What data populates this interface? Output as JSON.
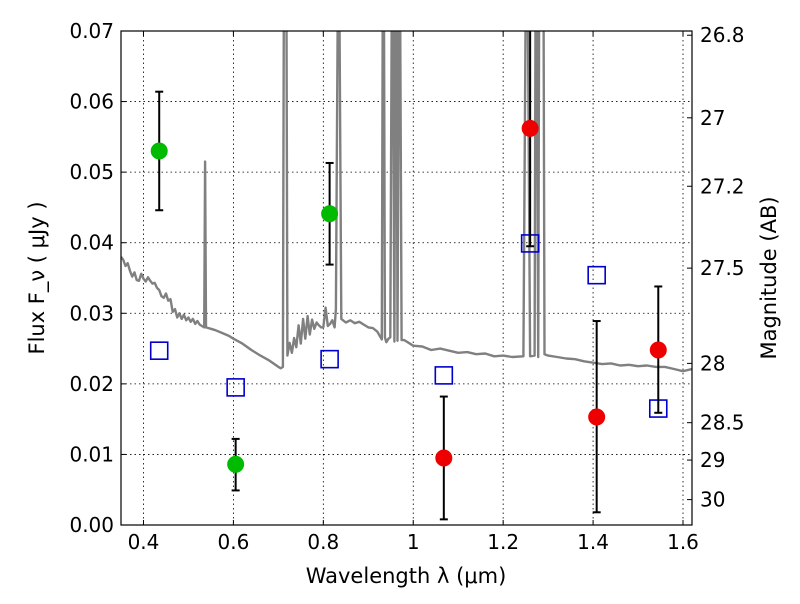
{
  "chart_data": {
    "type": "scatter",
    "xlabel": "Wavelength  λ (μm)",
    "ylabel": "Flux  F_ν  ( μJy )",
    "y2label": "Magnitude (AB)",
    "xlim": [
      0.35,
      1.62
    ],
    "ylim": [
      0.0,
      0.07
    ],
    "grid": true,
    "x_ticks": [
      0.4,
      0.6,
      0.8,
      1.0,
      1.2,
      1.4,
      1.6
    ],
    "x_tick_labels": [
      "0.4",
      "0.6",
      "0.8",
      "1",
      "1.2",
      "1.4",
      "1.6"
    ],
    "y_ticks": [
      0.0,
      0.01,
      0.02,
      0.03,
      0.04,
      0.05,
      0.06,
      0.07
    ],
    "y_tick_labels": [
      "0.00",
      "0.01",
      "0.02",
      "0.03",
      "0.04",
      "0.05",
      "0.06",
      "0.07"
    ],
    "mag_ticks": [
      {
        "label": "26.8",
        "flux": 0.0694
      },
      {
        "label": "27",
        "flux": 0.0577
      },
      {
        "label": "27.2",
        "flux": 0.048
      },
      {
        "label": "27.5",
        "flux": 0.0364
      },
      {
        "label": "28",
        "flux": 0.0229
      },
      {
        "label": "28.5",
        "flux": 0.0145
      },
      {
        "label": "29",
        "flux": 0.0092
      },
      {
        "label": "30",
        "flux": 0.0036
      }
    ],
    "series": [
      {
        "color": "#00bb00",
        "marker": "circle",
        "points": [
          {
            "x": 0.435,
            "y": 0.053,
            "ylo": 0.0446,
            "yhi": 0.0614
          },
          {
            "x": 0.605,
            "y": 0.0086,
            "ylo": 0.0049,
            "yhi": 0.0122
          },
          {
            "x": 0.814,
            "y": 0.0441,
            "ylo": 0.0369,
            "yhi": 0.0513
          }
        ]
      },
      {
        "color": "#ee0000",
        "marker": "circle",
        "points": [
          {
            "x": 1.068,
            "y": 0.0095,
            "ylo": 0.0008,
            "yhi": 0.0182
          },
          {
            "x": 1.26,
            "y": 0.0562,
            "ylo": 0.0395,
            "yhi": 0.0729
          },
          {
            "x": 1.408,
            "y": 0.0153,
            "ylo": 0.0018,
            "yhi": 0.0289
          },
          {
            "x": 1.545,
            "y": 0.0248,
            "ylo": 0.0159,
            "yhi": 0.0338
          }
        ]
      },
      {
        "color": "#0000cc",
        "marker": "open-square",
        "points": [
          {
            "x": 0.435,
            "y": 0.0247
          },
          {
            "x": 0.605,
            "y": 0.0195
          },
          {
            "x": 0.814,
            "y": 0.0235
          },
          {
            "x": 1.068,
            "y": 0.0212
          },
          {
            "x": 1.26,
            "y": 0.0399
          },
          {
            "x": 1.408,
            "y": 0.0354
          },
          {
            "x": 1.545,
            "y": 0.0165
          }
        ]
      },
      {
        "color": "#808080",
        "marker": "line",
        "points": [
          [
            0.35,
            0.038
          ],
          [
            0.355,
            0.0376
          ],
          [
            0.36,
            0.0367
          ],
          [
            0.365,
            0.0371
          ],
          [
            0.37,
            0.036
          ],
          [
            0.375,
            0.0352
          ],
          [
            0.38,
            0.0358
          ],
          [
            0.385,
            0.0347
          ],
          [
            0.39,
            0.0346
          ],
          [
            0.395,
            0.0356
          ],
          [
            0.4,
            0.0349
          ],
          [
            0.405,
            0.0345
          ],
          [
            0.41,
            0.0351
          ],
          [
            0.415,
            0.0346
          ],
          [
            0.42,
            0.0342
          ],
          [
            0.425,
            0.0343
          ],
          [
            0.43,
            0.0336
          ],
          [
            0.435,
            0.0333
          ],
          [
            0.44,
            0.0324
          ],
          [
            0.445,
            0.0322
          ],
          [
            0.45,
            0.0328
          ],
          [
            0.455,
            0.0318
          ],
          [
            0.46,
            0.032
          ],
          [
            0.465,
            0.0302
          ],
          [
            0.47,
            0.0306
          ],
          [
            0.475,
            0.0294
          ],
          [
            0.48,
            0.03
          ],
          [
            0.485,
            0.0292
          ],
          [
            0.49,
            0.0298
          ],
          [
            0.495,
            0.029
          ],
          [
            0.5,
            0.0294
          ],
          [
            0.505,
            0.0288
          ],
          [
            0.51,
            0.0292
          ],
          [
            0.515,
            0.0285
          ],
          [
            0.52,
            0.0289
          ],
          [
            0.525,
            0.0284
          ],
          [
            0.53,
            0.0282
          ],
          [
            0.535,
            0.028
          ],
          [
            0.537,
            0.0515
          ],
          [
            0.539,
            0.028
          ],
          [
            0.55,
            0.0278
          ],
          [
            0.56,
            0.0276
          ],
          [
            0.575,
            0.0272
          ],
          [
            0.59,
            0.0268
          ],
          [
            0.6,
            0.0264
          ],
          [
            0.62,
            0.0257
          ],
          [
            0.64,
            0.0248
          ],
          [
            0.66,
            0.024
          ],
          [
            0.68,
            0.0233
          ],
          [
            0.7,
            0.0224
          ],
          [
            0.705,
            0.0222
          ],
          [
            0.71,
            0.0224
          ],
          [
            0.712,
            0.072
          ],
          [
            0.718,
            0.072
          ],
          [
            0.72,
            0.024
          ],
          [
            0.725,
            0.0258
          ],
          [
            0.73,
            0.0244
          ],
          [
            0.735,
            0.0265
          ],
          [
            0.74,
            0.0252
          ],
          [
            0.745,
            0.0283
          ],
          [
            0.75,
            0.0257
          ],
          [
            0.755,
            0.0292
          ],
          [
            0.76,
            0.0264
          ],
          [
            0.765,
            0.0296
          ],
          [
            0.77,
            0.027
          ],
          [
            0.775,
            0.0291
          ],
          [
            0.78,
            0.0278
          ],
          [
            0.785,
            0.0287
          ],
          [
            0.79,
            0.0283
          ],
          [
            0.795,
            0.028
          ],
          [
            0.8,
            0.028
          ],
          [
            0.805,
            0.0308
          ],
          [
            0.81,
            0.0282
          ],
          [
            0.815,
            0.0285
          ],
          [
            0.82,
            0.029
          ],
          [
            0.825,
            0.028
          ],
          [
            0.828,
            0.0306
          ],
          [
            0.832,
            0.072
          ],
          [
            0.836,
            0.072
          ],
          [
            0.84,
            0.0292
          ],
          [
            0.85,
            0.0287
          ],
          [
            0.86,
            0.029
          ],
          [
            0.87,
            0.0286
          ],
          [
            0.88,
            0.0288
          ],
          [
            0.89,
            0.0284
          ],
          [
            0.9,
            0.028
          ],
          [
            0.91,
            0.0279
          ],
          [
            0.92,
            0.0274
          ],
          [
            0.93,
            0.0263
          ],
          [
            0.932,
            0.072
          ],
          [
            0.935,
            0.072
          ],
          [
            0.937,
            0.0266
          ],
          [
            0.94,
            0.0259
          ],
          [
            0.945,
            0.0264
          ],
          [
            0.949,
            0.0266
          ],
          [
            0.952,
            0.072
          ],
          [
            0.955,
            0.072
          ],
          [
            0.958,
            0.026
          ],
          [
            0.96,
            0.072
          ],
          [
            0.963,
            0.072
          ],
          [
            0.965,
            0.0261
          ],
          [
            0.968,
            0.072
          ],
          [
            0.971,
            0.072
          ],
          [
            0.974,
            0.0262
          ],
          [
            0.98,
            0.0262
          ],
          [
            1.0,
            0.0254
          ],
          [
            1.02,
            0.0253
          ],
          [
            1.04,
            0.0248
          ],
          [
            1.06,
            0.025
          ],
          [
            1.08,
            0.0247
          ],
          [
            1.1,
            0.0244
          ],
          [
            1.12,
            0.0245
          ],
          [
            1.14,
            0.0242
          ],
          [
            1.16,
            0.0243
          ],
          [
            1.18,
            0.0239
          ],
          [
            1.2,
            0.024
          ],
          [
            1.22,
            0.0238
          ],
          [
            1.245,
            0.0239
          ],
          [
            1.25,
            0.072
          ],
          [
            1.255,
            0.072
          ],
          [
            1.26,
            0.0239
          ],
          [
            1.27,
            0.024
          ],
          [
            1.272,
            0.072
          ],
          [
            1.275,
            0.072
          ],
          [
            1.278,
            0.0238
          ],
          [
            1.28,
            0.072
          ],
          [
            1.29,
            0.072
          ],
          [
            1.292,
            0.0242
          ],
          [
            1.3,
            0.024
          ],
          [
            1.32,
            0.0238
          ],
          [
            1.34,
            0.0236
          ],
          [
            1.36,
            0.0235
          ],
          [
            1.38,
            0.0232
          ],
          [
            1.4,
            0.023
          ],
          [
            1.42,
            0.0228
          ],
          [
            1.44,
            0.0229
          ],
          [
            1.46,
            0.0226
          ],
          [
            1.48,
            0.0227
          ],
          [
            1.5,
            0.0225
          ],
          [
            1.52,
            0.0226
          ],
          [
            1.54,
            0.0224
          ],
          [
            1.56,
            0.0224
          ],
          [
            1.58,
            0.0221
          ],
          [
            1.6,
            0.0218
          ],
          [
            1.62,
            0.0221
          ]
        ]
      }
    ]
  }
}
